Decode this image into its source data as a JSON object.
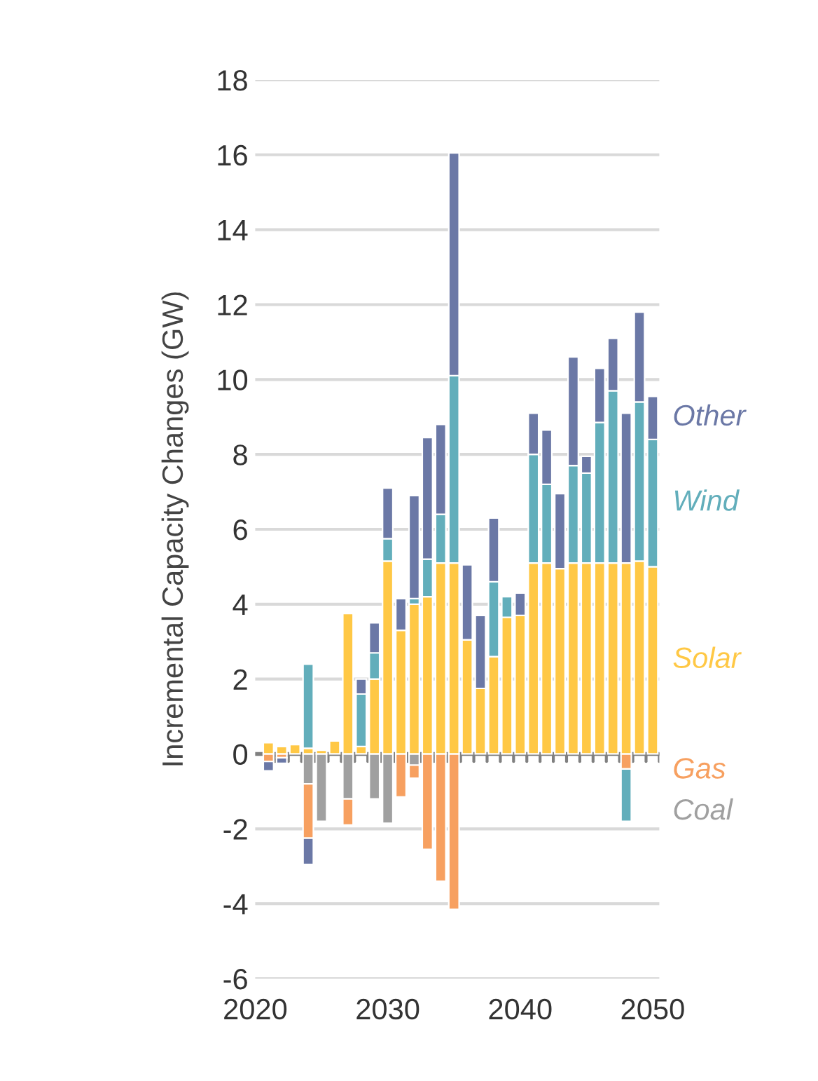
{
  "chart_data": {
    "type": "bar",
    "stacked": true,
    "ylabel": "Incremental Capacity Changes (GW)",
    "x": [
      2021,
      2022,
      2023,
      2024,
      2025,
      2026,
      2027,
      2028,
      2029,
      2030,
      2031,
      2032,
      2033,
      2034,
      2035,
      2036,
      2037,
      2038,
      2039,
      2040,
      2041,
      2042,
      2043,
      2044,
      2045,
      2046,
      2047,
      2048,
      2049,
      2050
    ],
    "series": [
      {
        "name": "Coal",
        "color": "#a0a0a0",
        "values": [
          0,
          0,
          0,
          -0.8,
          -1.8,
          0,
          -1.2,
          0,
          -1.2,
          -1.85,
          0,
          -0.3,
          0,
          0,
          0,
          0,
          0,
          0,
          0,
          0,
          0,
          0,
          0,
          0,
          0,
          0,
          0,
          0,
          0,
          0
        ]
      },
      {
        "name": "Gas",
        "color": "#f7a060",
        "values": [
          -0.2,
          -0.1,
          0,
          -1.45,
          0,
          0,
          -0.7,
          0,
          0,
          0,
          -1.15,
          -0.35,
          -2.55,
          -3.4,
          -4.15,
          0,
          0,
          0,
          0,
          0,
          0,
          0,
          0,
          0,
          0,
          0,
          0,
          -0.4,
          0,
          0
        ]
      },
      {
        "name": "Solar",
        "color": "#ffc845",
        "values": [
          0.3,
          0.2,
          0.25,
          0.15,
          0.1,
          0.35,
          3.75,
          0.2,
          2.0,
          5.15,
          3.3,
          4.0,
          4.2,
          5.1,
          5.1,
          3.05,
          1.75,
          2.6,
          3.65,
          3.7,
          5.1,
          5.1,
          4.95,
          5.1,
          5.1,
          5.1,
          5.1,
          5.1,
          5.15,
          5.0
        ]
      },
      {
        "name": "Wind",
        "color": "#62aebb",
        "values": [
          0,
          0,
          0,
          2.25,
          0,
          0,
          0,
          1.4,
          0.7,
          0.6,
          0,
          0.15,
          1.0,
          1.3,
          5.0,
          0,
          0,
          2.0,
          0.55,
          0,
          2.9,
          2.1,
          0,
          2.6,
          2.4,
          3.75,
          4.6,
          -1.4,
          4.25,
          3.4
        ]
      },
      {
        "name": "Other",
        "color": "#6b78a6",
        "values": [
          -0.25,
          -0.15,
          0,
          -0.7,
          0,
          0,
          0,
          0.4,
          0.8,
          1.35,
          0.85,
          2.75,
          3.25,
          2.4,
          5.95,
          2.0,
          1.95,
          1.7,
          0,
          0.6,
          1.1,
          1.45,
          2.0,
          2.9,
          0.45,
          1.45,
          1.4,
          4.0,
          2.4,
          1.15
        ]
      }
    ],
    "xlim": [
      2020,
      2050.5
    ],
    "xticks": [
      2020,
      2030,
      2040,
      2050
    ],
    "ylim": [
      -6,
      18
    ],
    "yticks": [
      -6,
      -4,
      -2,
      0,
      2,
      4,
      6,
      8,
      10,
      12,
      14,
      16,
      18
    ],
    "grid": "y",
    "legend": false
  }
}
